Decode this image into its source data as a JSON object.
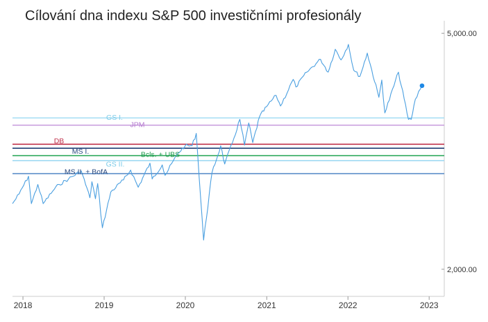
{
  "chart_data": {
    "type": "line",
    "title": "Cílování dna indexu S&P 500 investičními profesionály",
    "xlabel": "",
    "ylabel": "",
    "y_scale": "log",
    "ylim": [
      1800,
      5250
    ],
    "xlim": [
      "2017-11-15",
      "2023-03-10"
    ],
    "x_ticks": [
      {
        "date": "2018-01-01",
        "label": "2018"
      },
      {
        "date": "2019-01-01",
        "label": "2019"
      },
      {
        "date": "2020-01-01",
        "label": "2020"
      },
      {
        "date": "2021-01-01",
        "label": "2021"
      },
      {
        "date": "2022-01-01",
        "label": "2022"
      },
      {
        "date": "2023-01-01",
        "label": "2023"
      }
    ],
    "y_ticks": [
      {
        "value": 5000,
        "label": "5,000.00"
      },
      {
        "value": 2000,
        "label": "2,000.00"
      }
    ],
    "grid": false,
    "legend": "none",
    "series": [
      {
        "color": "#4a9fe0",
        "points": [
          [
            "2017-11-15",
            2580
          ],
          [
            "2017-12-15",
            2680
          ],
          [
            "2018-01-26",
            2870
          ],
          [
            "2018-02-08",
            2580
          ],
          [
            "2018-03-09",
            2780
          ],
          [
            "2018-04-02",
            2580
          ],
          [
            "2018-05-15",
            2710
          ],
          [
            "2018-06-12",
            2780
          ],
          [
            "2018-07-25",
            2840
          ],
          [
            "2018-09-20",
            2930
          ],
          [
            "2018-10-29",
            2640
          ],
          [
            "2018-11-07",
            2810
          ],
          [
            "2018-11-23",
            2630
          ],
          [
            "2018-12-03",
            2790
          ],
          [
            "2018-12-24",
            2350
          ],
          [
            "2019-01-31",
            2700
          ],
          [
            "2019-03-29",
            2830
          ],
          [
            "2019-04-30",
            2940
          ],
          [
            "2019-06-03",
            2750
          ],
          [
            "2019-07-26",
            3020
          ],
          [
            "2019-08-05",
            2840
          ],
          [
            "2019-09-19",
            3000
          ],
          [
            "2019-10-02",
            2880
          ],
          [
            "2019-11-29",
            3140
          ],
          [
            "2019-12-31",
            3230
          ],
          [
            "2020-01-31",
            3230
          ],
          [
            "2020-02-19",
            3390
          ],
          [
            "2020-03-23",
            2240
          ],
          [
            "2020-04-30",
            2910
          ],
          [
            "2020-06-08",
            3230
          ],
          [
            "2020-06-26",
            3010
          ],
          [
            "2020-07-31",
            3270
          ],
          [
            "2020-09-02",
            3580
          ],
          [
            "2020-09-23",
            3240
          ],
          [
            "2020-10-12",
            3530
          ],
          [
            "2020-10-30",
            3270
          ],
          [
            "2020-11-30",
            3620
          ],
          [
            "2020-12-31",
            3760
          ],
          [
            "2021-02-12",
            3930
          ],
          [
            "2021-03-04",
            3770
          ],
          [
            "2021-04-30",
            4180
          ],
          [
            "2021-05-12",
            4060
          ],
          [
            "2021-06-30",
            4300
          ],
          [
            "2021-08-31",
            4520
          ],
          [
            "2021-10-04",
            4300
          ],
          [
            "2021-11-05",
            4700
          ],
          [
            "2021-12-01",
            4510
          ],
          [
            "2022-01-03",
            4790
          ],
          [
            "2022-01-27",
            4330
          ],
          [
            "2022-02-24",
            4230
          ],
          [
            "2022-03-29",
            4630
          ],
          [
            "2022-05-20",
            3900
          ],
          [
            "2022-06-02",
            4170
          ],
          [
            "2022-06-16",
            3670
          ],
          [
            "2022-08-16",
            4300
          ],
          [
            "2022-09-30",
            3580
          ],
          [
            "2022-10-12",
            3580
          ],
          [
            "2022-10-31",
            3870
          ],
          [
            "2022-11-15",
            3990
          ],
          [
            "2022-11-30",
            4080
          ]
        ],
        "last_point_marker": true
      }
    ],
    "reference_lines": [
      {
        "label": "GS I.",
        "value": 3600,
        "color": "#a9dff5",
        "text_color": "#7ccbe8"
      },
      {
        "label": "JPM",
        "value": 3500,
        "color": "#c79bdc",
        "text_color": "#b57bd0"
      },
      {
        "label": "DB",
        "value": 3250,
        "color": "#c0304a",
        "text_color": "#c0304a"
      },
      {
        "label": "MS I.",
        "value": 3200,
        "color": "#1f3b73",
        "text_color": "#2a4a80"
      },
      {
        "label": "Bcls. + UBS",
        "value": 3110,
        "color": "#2eaa5c",
        "text_color": "#1f9a4c"
      },
      {
        "label": "GS II.",
        "value": 3050,
        "color": "#9fd9f2",
        "text_color": "#7ccbe8"
      },
      {
        "label": "MS II. + BofA",
        "value": 2900,
        "color": "#5b8ec9",
        "text_color": "#2a4a80"
      }
    ],
    "colors": {
      "line": "#4a9fe0",
      "axis": "#cccccc",
      "tick_text": "#333333"
    }
  }
}
